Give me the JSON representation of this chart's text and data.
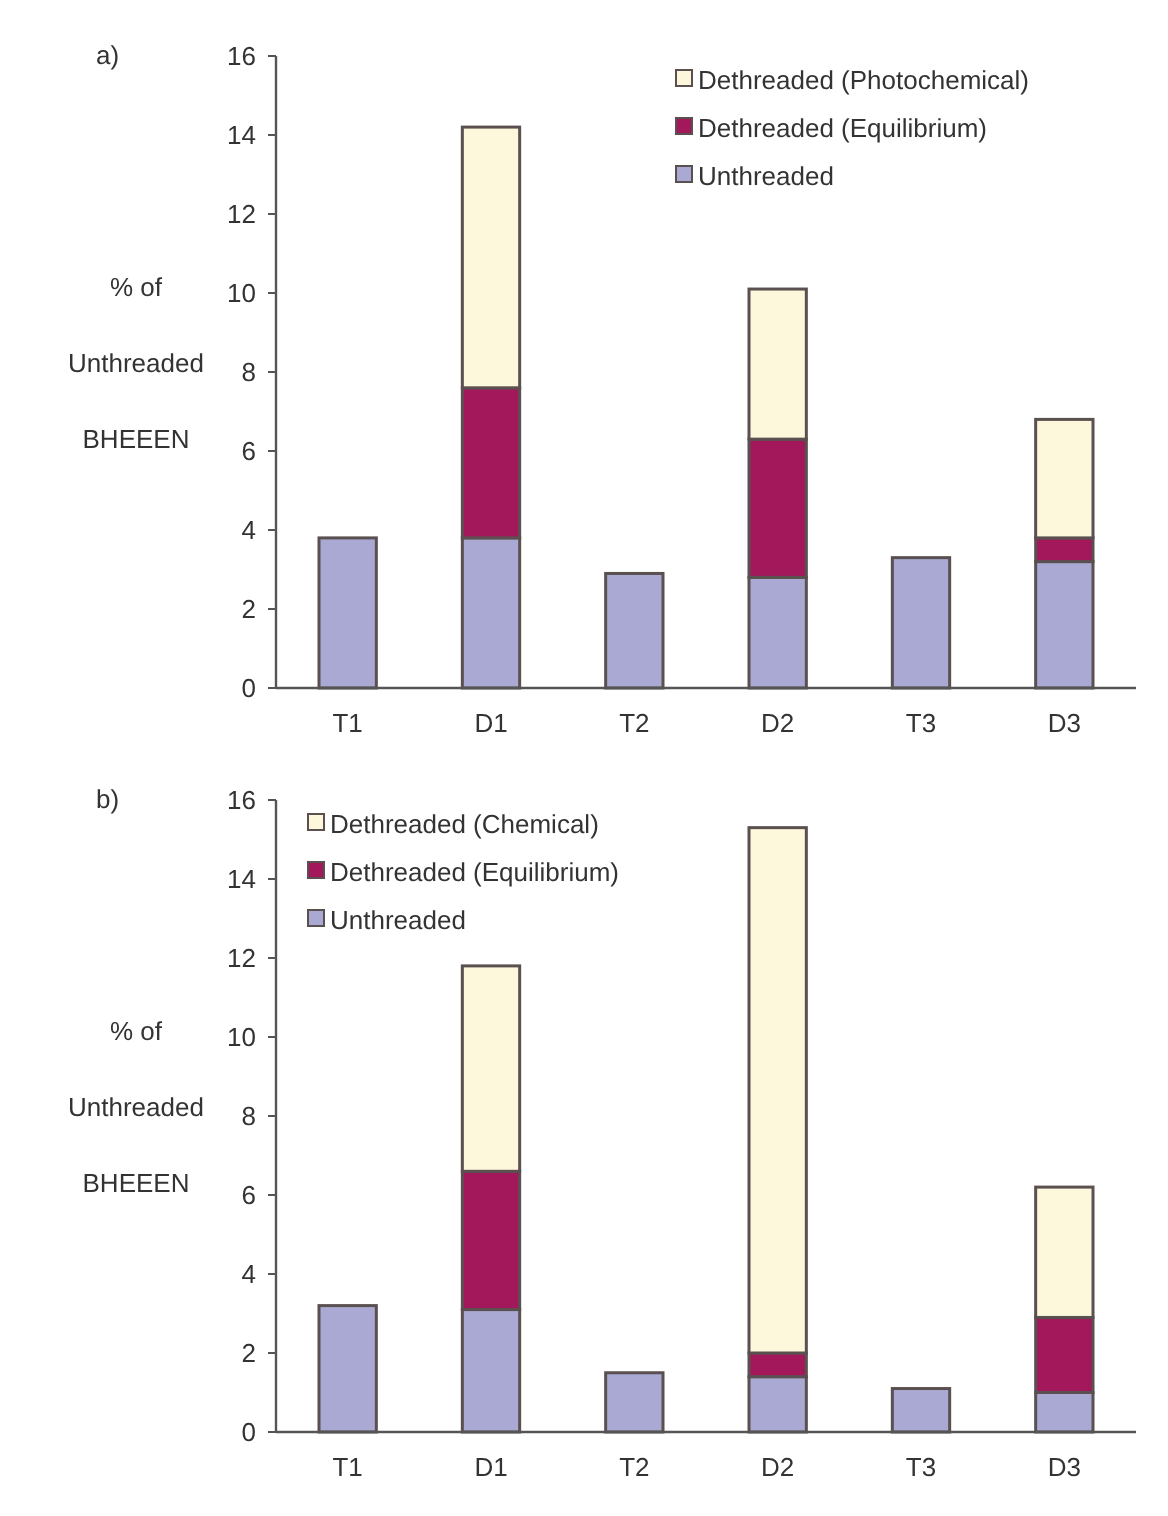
{
  "chart_data": [
    {
      "type": "bar",
      "title": "a)",
      "ylabel": "% of Unthreaded BHEEEN",
      "categories": [
        "T1",
        "D1",
        "T2",
        "D2",
        "T3",
        "D3"
      ],
      "stacked": true,
      "ylim": [
        0,
        16
      ],
      "yticks": [
        0,
        2,
        4,
        6,
        8,
        10,
        12,
        14,
        16
      ],
      "grid": false,
      "legend": "top right",
      "series": [
        {
          "name": "Unthreaded",
          "color": "#a9a9d4",
          "values": [
            3.8,
            3.8,
            2.9,
            2.8,
            3.3,
            3.2
          ]
        },
        {
          "name": "Dethreaded (Equilibrium)",
          "color": "#a3185a",
          "values": [
            null,
            3.8,
            null,
            3.5,
            null,
            0.6
          ]
        },
        {
          "name": "Dethreaded (Photochemical)",
          "color": "#fdf8dc",
          "values": [
            null,
            6.6,
            null,
            3.8,
            null,
            3.0
          ]
        }
      ]
    },
    {
      "type": "bar",
      "title": "b)",
      "ylabel": "% of Unthreaded BHEEEN",
      "categories": [
        "T1",
        "D1",
        "T2",
        "D2",
        "T3",
        "D3"
      ],
      "stacked": true,
      "ylim": [
        0,
        16
      ],
      "yticks": [
        0,
        2,
        4,
        6,
        8,
        10,
        12,
        14,
        16
      ],
      "grid": false,
      "legend": "top left",
      "series": [
        {
          "name": "Unthreaded",
          "color": "#a9a9d4",
          "values": [
            3.2,
            3.1,
            1.5,
            1.4,
            1.1,
            1.0
          ]
        },
        {
          "name": "Dethreaded (Equilibrium)",
          "color": "#a3185a",
          "values": [
            null,
            3.5,
            null,
            0.6,
            null,
            1.9
          ]
        },
        {
          "name": "Dethreaded (Chemical)",
          "color": "#fdf8dc",
          "values": [
            null,
            5.2,
            null,
            13.3,
            null,
            3.3
          ]
        }
      ]
    }
  ]
}
